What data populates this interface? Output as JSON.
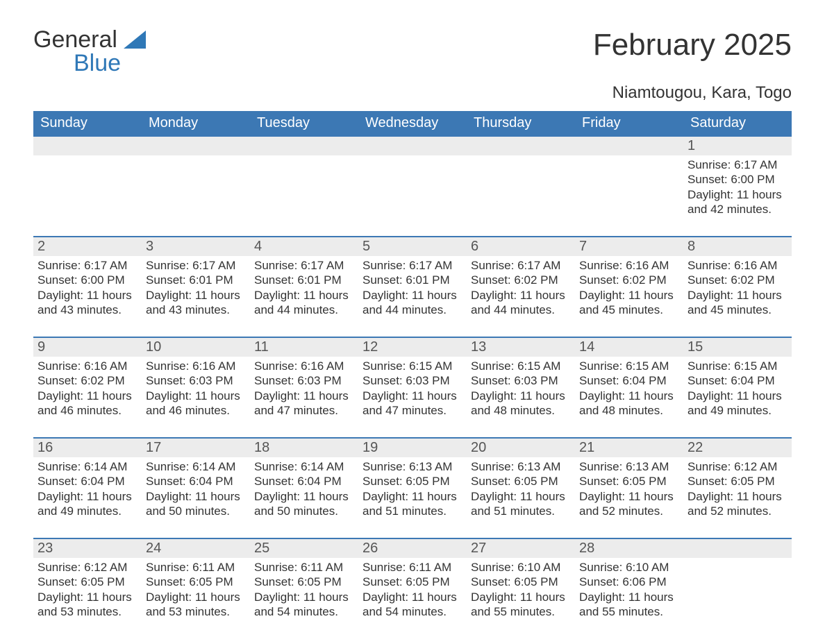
{
  "logo": {
    "word1": "General",
    "word2": "Blue",
    "mark_color": "#2f78b7"
  },
  "title": "February 2025",
  "subtitle": "Niamtougou, Kara, Togo",
  "colors": {
    "header_bg": "#3c78b4",
    "header_text": "#ffffff",
    "daynum_bg": "#ececec",
    "daynum_text": "#555555",
    "body_text": "#333333",
    "rule": "#3c78b4",
    "page_bg": "#ffffff"
  },
  "typography": {
    "title_fontsize": 44,
    "subtitle_fontsize": 24,
    "dow_fontsize": 20,
    "daynum_fontsize": 20,
    "body_fontsize": 17
  },
  "days_of_week": [
    "Sunday",
    "Monday",
    "Tuesday",
    "Wednesday",
    "Thursday",
    "Friday",
    "Saturday"
  ],
  "weeks": [
    [
      null,
      null,
      null,
      null,
      null,
      null,
      {
        "n": "1",
        "sunrise": "Sunrise: 6:17 AM",
        "sunset": "Sunset: 6:00 PM",
        "daylight": "Daylight: 11 hours and 42 minutes."
      }
    ],
    [
      {
        "n": "2",
        "sunrise": "Sunrise: 6:17 AM",
        "sunset": "Sunset: 6:00 PM",
        "daylight": "Daylight: 11 hours and 43 minutes."
      },
      {
        "n": "3",
        "sunrise": "Sunrise: 6:17 AM",
        "sunset": "Sunset: 6:01 PM",
        "daylight": "Daylight: 11 hours and 43 minutes."
      },
      {
        "n": "4",
        "sunrise": "Sunrise: 6:17 AM",
        "sunset": "Sunset: 6:01 PM",
        "daylight": "Daylight: 11 hours and 44 minutes."
      },
      {
        "n": "5",
        "sunrise": "Sunrise: 6:17 AM",
        "sunset": "Sunset: 6:01 PM",
        "daylight": "Daylight: 11 hours and 44 minutes."
      },
      {
        "n": "6",
        "sunrise": "Sunrise: 6:17 AM",
        "sunset": "Sunset: 6:02 PM",
        "daylight": "Daylight: 11 hours and 44 minutes."
      },
      {
        "n": "7",
        "sunrise": "Sunrise: 6:16 AM",
        "sunset": "Sunset: 6:02 PM",
        "daylight": "Daylight: 11 hours and 45 minutes."
      },
      {
        "n": "8",
        "sunrise": "Sunrise: 6:16 AM",
        "sunset": "Sunset: 6:02 PM",
        "daylight": "Daylight: 11 hours and 45 minutes."
      }
    ],
    [
      {
        "n": "9",
        "sunrise": "Sunrise: 6:16 AM",
        "sunset": "Sunset: 6:02 PM",
        "daylight": "Daylight: 11 hours and 46 minutes."
      },
      {
        "n": "10",
        "sunrise": "Sunrise: 6:16 AM",
        "sunset": "Sunset: 6:03 PM",
        "daylight": "Daylight: 11 hours and 46 minutes."
      },
      {
        "n": "11",
        "sunrise": "Sunrise: 6:16 AM",
        "sunset": "Sunset: 6:03 PM",
        "daylight": "Daylight: 11 hours and 47 minutes."
      },
      {
        "n": "12",
        "sunrise": "Sunrise: 6:15 AM",
        "sunset": "Sunset: 6:03 PM",
        "daylight": "Daylight: 11 hours and 47 minutes."
      },
      {
        "n": "13",
        "sunrise": "Sunrise: 6:15 AM",
        "sunset": "Sunset: 6:03 PM",
        "daylight": "Daylight: 11 hours and 48 minutes."
      },
      {
        "n": "14",
        "sunrise": "Sunrise: 6:15 AM",
        "sunset": "Sunset: 6:04 PM",
        "daylight": "Daylight: 11 hours and 48 minutes."
      },
      {
        "n": "15",
        "sunrise": "Sunrise: 6:15 AM",
        "sunset": "Sunset: 6:04 PM",
        "daylight": "Daylight: 11 hours and 49 minutes."
      }
    ],
    [
      {
        "n": "16",
        "sunrise": "Sunrise: 6:14 AM",
        "sunset": "Sunset: 6:04 PM",
        "daylight": "Daylight: 11 hours and 49 minutes."
      },
      {
        "n": "17",
        "sunrise": "Sunrise: 6:14 AM",
        "sunset": "Sunset: 6:04 PM",
        "daylight": "Daylight: 11 hours and 50 minutes."
      },
      {
        "n": "18",
        "sunrise": "Sunrise: 6:14 AM",
        "sunset": "Sunset: 6:04 PM",
        "daylight": "Daylight: 11 hours and 50 minutes."
      },
      {
        "n": "19",
        "sunrise": "Sunrise: 6:13 AM",
        "sunset": "Sunset: 6:05 PM",
        "daylight": "Daylight: 11 hours and 51 minutes."
      },
      {
        "n": "20",
        "sunrise": "Sunrise: 6:13 AM",
        "sunset": "Sunset: 6:05 PM",
        "daylight": "Daylight: 11 hours and 51 minutes."
      },
      {
        "n": "21",
        "sunrise": "Sunrise: 6:13 AM",
        "sunset": "Sunset: 6:05 PM",
        "daylight": "Daylight: 11 hours and 52 minutes."
      },
      {
        "n": "22",
        "sunrise": "Sunrise: 6:12 AM",
        "sunset": "Sunset: 6:05 PM",
        "daylight": "Daylight: 11 hours and 52 minutes."
      }
    ],
    [
      {
        "n": "23",
        "sunrise": "Sunrise: 6:12 AM",
        "sunset": "Sunset: 6:05 PM",
        "daylight": "Daylight: 11 hours and 53 minutes."
      },
      {
        "n": "24",
        "sunrise": "Sunrise: 6:11 AM",
        "sunset": "Sunset: 6:05 PM",
        "daylight": "Daylight: 11 hours and 53 minutes."
      },
      {
        "n": "25",
        "sunrise": "Sunrise: 6:11 AM",
        "sunset": "Sunset: 6:05 PM",
        "daylight": "Daylight: 11 hours and 54 minutes."
      },
      {
        "n": "26",
        "sunrise": "Sunrise: 6:11 AM",
        "sunset": "Sunset: 6:05 PM",
        "daylight": "Daylight: 11 hours and 54 minutes."
      },
      {
        "n": "27",
        "sunrise": "Sunrise: 6:10 AM",
        "sunset": "Sunset: 6:05 PM",
        "daylight": "Daylight: 11 hours and 55 minutes."
      },
      {
        "n": "28",
        "sunrise": "Sunrise: 6:10 AM",
        "sunset": "Sunset: 6:06 PM",
        "daylight": "Daylight: 11 hours and 55 minutes."
      },
      null
    ]
  ]
}
